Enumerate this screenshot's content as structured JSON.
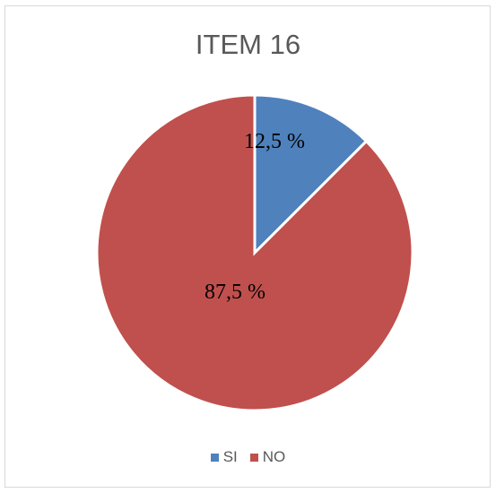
{
  "chart_data": {
    "type": "pie",
    "title": "ITEM 16",
    "categories": [
      "SI",
      "NO"
    ],
    "values": [
      12.5,
      87.5
    ],
    "data_labels": [
      "12,5 %",
      "87,5 %"
    ],
    "colors": [
      "#4f81bd",
      "#c0504d"
    ],
    "legend": "bottom"
  }
}
